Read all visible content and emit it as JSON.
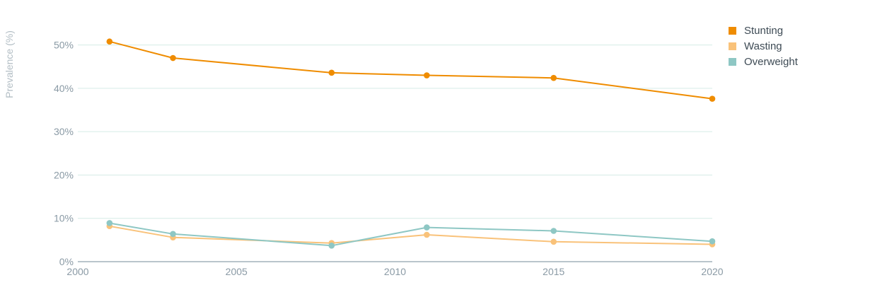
{
  "chart_data": {
    "type": "line",
    "title": "",
    "xlabel": "",
    "ylabel": "Prevalence (%)",
    "xlim": [
      2000,
      2020
    ],
    "ylim": [
      0,
      55
    ],
    "x_ticks": [
      {
        "value": 2000,
        "label": "2000"
      },
      {
        "value": 2005,
        "label": "2005"
      },
      {
        "value": 2010,
        "label": "2010"
      },
      {
        "value": 2015,
        "label": "2015"
      },
      {
        "value": 2020,
        "label": "2020"
      }
    ],
    "y_ticks": [
      {
        "value": 0,
        "label": "0%"
      },
      {
        "value": 10,
        "label": "10%"
      },
      {
        "value": 20,
        "label": "20%"
      },
      {
        "value": 30,
        "label": "30%"
      },
      {
        "value": 40,
        "label": "40%"
      },
      {
        "value": 50,
        "label": "50%"
      }
    ],
    "grid": true,
    "legend_position": "top-right",
    "series": [
      {
        "name": "Stunting",
        "color": "#ef8c00",
        "points": [
          {
            "x": 2001,
            "y": 50.8
          },
          {
            "x": 2003,
            "y": 47.0
          },
          {
            "x": 2008,
            "y": 43.6
          },
          {
            "x": 2011,
            "y": 43.0
          },
          {
            "x": 2015,
            "y": 42.4
          },
          {
            "x": 2020,
            "y": 37.6
          }
        ]
      },
      {
        "name": "Wasting",
        "color": "#f9c27a",
        "points": [
          {
            "x": 2001,
            "y": 8.2
          },
          {
            "x": 2003,
            "y": 5.6
          },
          {
            "x": 2008,
            "y": 4.3
          },
          {
            "x": 2011,
            "y": 6.2
          },
          {
            "x": 2015,
            "y": 4.6
          },
          {
            "x": 2020,
            "y": 4.0
          }
        ]
      },
      {
        "name": "Overweight",
        "color": "#8ec7c4",
        "points": [
          {
            "x": 2001,
            "y": 8.9
          },
          {
            "x": 2003,
            "y": 6.4
          },
          {
            "x": 2008,
            "y": 3.7
          },
          {
            "x": 2011,
            "y": 7.9
          },
          {
            "x": 2015,
            "y": 7.1
          },
          {
            "x": 2020,
            "y": 4.7
          }
        ]
      }
    ]
  }
}
